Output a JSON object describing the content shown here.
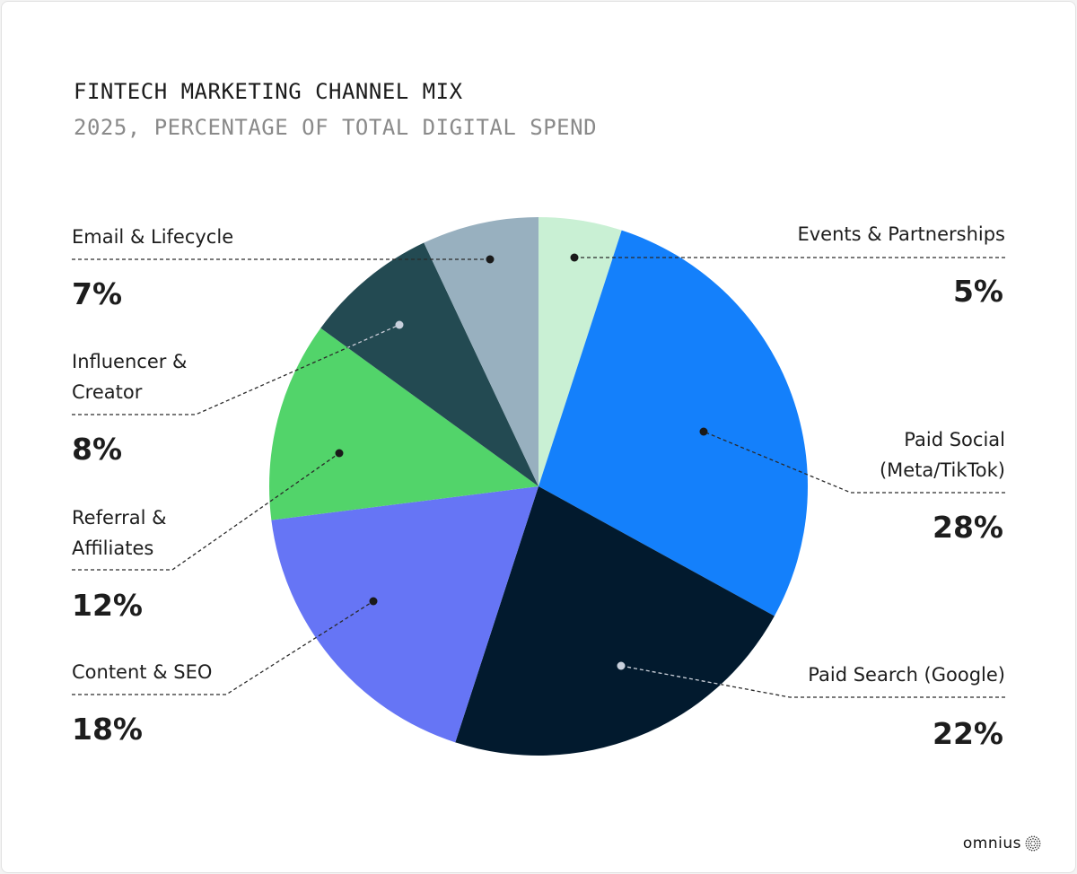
{
  "chart_data": {
    "type": "pie",
    "title": "FINTECH MARKETING CHANNEL MIX",
    "subtitle": "2025, PERCENTAGE OF TOTAL DIGITAL SPEND",
    "start_angle": "12 o'clock, clockwise",
    "slices": [
      {
        "label": "Events & Partnerships",
        "value": 5,
        "display": "5%",
        "color": "#c9f0d4"
      },
      {
        "label": "Paid Social (Meta/TikTok)",
        "value": 28,
        "display": "28%",
        "color": "#1480fb"
      },
      {
        "label": "Paid Search (Google)",
        "value": 22,
        "display": "22%",
        "color": "#021a2e"
      },
      {
        "label": "Content & SEO",
        "value": 18,
        "display": "18%",
        "color": "#6675f5"
      },
      {
        "label": "Referral & Affiliates",
        "value": 12,
        "display": "12%",
        "color": "#52d46a"
      },
      {
        "label": "Influencer & Creator",
        "value": 8,
        "display": "8%",
        "color": "#234a52"
      },
      {
        "label": "Email & Lifecycle",
        "value": 7,
        "display": "7%",
        "color": "#98b0bf"
      }
    ]
  },
  "brand": {
    "name": "omnius",
    "icon": "dotted-sphere-icon"
  }
}
